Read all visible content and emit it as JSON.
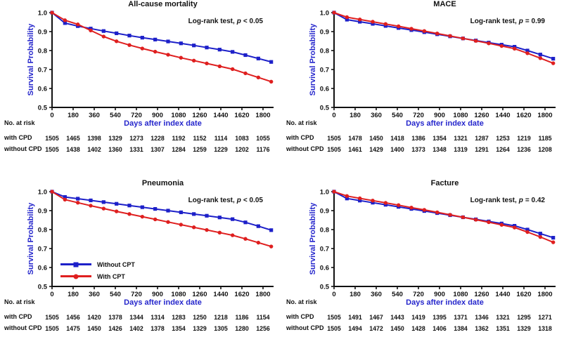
{
  "figure": {
    "background": "#ffffff",
    "colors": {
      "without_cpt": "#1d20c9",
      "with_cpt": "#df1f1f",
      "axis_label_blue": "#2526cc",
      "axis": "#111111",
      "text": "#111111"
    }
  },
  "chart_data": [
    {
      "type": "line",
      "title": "All-cause mortality",
      "logrank": {
        "prefix": "Log-rank test,",
        "p": "p",
        "value": "< 0.05"
      },
      "xlabel": "Days after index date",
      "ylabel": "Survival Probability",
      "ylim": [
        0.5,
        1.0
      ],
      "y_ticks": [
        "1.0",
        "0.9",
        "0.8",
        "0.7",
        "0.6",
        "0.5"
      ],
      "x_ticks": [
        0,
        180,
        360,
        540,
        720,
        900,
        1080,
        1260,
        1440,
        1620,
        1800
      ],
      "x_step_days": 110,
      "series": [
        {
          "name": "Without CPT",
          "color_key": "without_cpt",
          "marker": "square",
          "values": [
            1.0,
            0.945,
            0.929,
            0.916,
            0.903,
            0.891,
            0.879,
            0.868,
            0.858,
            0.848,
            0.838,
            0.827,
            0.816,
            0.805,
            0.793,
            0.776,
            0.758,
            0.74
          ]
        },
        {
          "name": "With CPT",
          "color_key": "with_cpt",
          "marker": "circle",
          "values": [
            1.0,
            0.96,
            0.938,
            0.906,
            0.874,
            0.849,
            0.829,
            0.811,
            0.794,
            0.778,
            0.762,
            0.747,
            0.732,
            0.717,
            0.702,
            0.68,
            0.658,
            0.636
          ]
        }
      ],
      "risk": {
        "header": "No. at risk",
        "rows": [
          {
            "label": "with CPD",
            "values": [
              1505,
              1465,
              1398,
              1329,
              1273,
              1228,
              1192,
              1152,
              1114,
              1083,
              1055
            ]
          },
          {
            "label": "without CPD",
            "values": [
              1505,
              1438,
              1402,
              1360,
              1331,
              1307,
              1284,
              1259,
              1229,
              1202,
              1176
            ]
          }
        ]
      }
    },
    {
      "type": "line",
      "title": "MACE",
      "logrank": {
        "prefix": "Log-rank test,",
        "p": "p",
        "value": "= 0.99"
      },
      "xlabel": "Days after index date",
      "ylabel": "Survival Probability",
      "ylim": [
        0.5,
        1.0
      ],
      "y_ticks": [
        "1.0",
        "0.9",
        "0.8",
        "0.7",
        "0.6",
        "0.5"
      ],
      "x_ticks": [
        0,
        180,
        360,
        540,
        720,
        900,
        1080,
        1260,
        1440,
        1620,
        1800
      ],
      "x_step_days": 110,
      "series": [
        {
          "name": "Without CPT",
          "color_key": "without_cpt",
          "marker": "square",
          "values": [
            1.0,
            0.963,
            0.952,
            0.941,
            0.93,
            0.919,
            0.908,
            0.897,
            0.886,
            0.875,
            0.864,
            0.853,
            0.842,
            0.831,
            0.82,
            0.8,
            0.779,
            0.757
          ]
        },
        {
          "name": "With CPT",
          "color_key": "with_cpt",
          "marker": "circle",
          "values": [
            1.0,
            0.976,
            0.964,
            0.952,
            0.94,
            0.928,
            0.915,
            0.903,
            0.89,
            0.877,
            0.864,
            0.851,
            0.838,
            0.824,
            0.81,
            0.786,
            0.76,
            0.733
          ]
        }
      ],
      "risk": {
        "header": "No. at risk",
        "rows": [
          {
            "label": "with CPD",
            "values": [
              1505,
              1478,
              1450,
              1418,
              1386,
              1354,
              1321,
              1287,
              1253,
              1219,
              1185
            ]
          },
          {
            "label": "without CPD",
            "values": [
              1505,
              1461,
              1429,
              1400,
              1373,
              1348,
              1319,
              1291,
              1264,
              1236,
              1208
            ]
          }
        ]
      }
    },
    {
      "type": "line",
      "title": "Pneumonia",
      "logrank": {
        "prefix": "Log-rank test,",
        "p": "p",
        "value": "< 0.05"
      },
      "xlabel": "Days after index date",
      "ylabel": "Survival Probability",
      "ylim": [
        0.5,
        1.0
      ],
      "y_ticks": [
        "1.0",
        "0.9",
        "0.8",
        "0.7",
        "0.6",
        "0.5"
      ],
      "x_ticks": [
        0,
        180,
        360,
        540,
        720,
        900,
        1080,
        1260,
        1440,
        1620,
        1800
      ],
      "x_step_days": 110,
      "legend": {
        "items": [
          {
            "label": "Without CPT",
            "color_key": "without_cpt",
            "marker": "square"
          },
          {
            "label": "With CPT",
            "color_key": "with_cpt",
            "marker": "circle"
          }
        ]
      },
      "series": [
        {
          "name": "Without CPT",
          "color_key": "without_cpt",
          "marker": "square",
          "values": [
            1.0,
            0.972,
            0.963,
            0.954,
            0.945,
            0.936,
            0.927,
            0.918,
            0.909,
            0.9,
            0.891,
            0.882,
            0.873,
            0.864,
            0.855,
            0.838,
            0.818,
            0.797
          ]
        },
        {
          "name": "With CPT",
          "color_key": "with_cpt",
          "marker": "circle",
          "values": [
            1.0,
            0.958,
            0.942,
            0.926,
            0.911,
            0.896,
            0.882,
            0.868,
            0.854,
            0.84,
            0.826,
            0.812,
            0.798,
            0.784,
            0.77,
            0.751,
            0.731,
            0.711
          ]
        }
      ],
      "risk": {
        "header": "No. at risk",
        "rows": [
          {
            "label": "with CPD",
            "values": [
              1505,
              1456,
              1420,
              1378,
              1344,
              1314,
              1283,
              1250,
              1218,
              1186,
              1154
            ]
          },
          {
            "label": "without CPD",
            "values": [
              1505,
              1475,
              1450,
              1426,
              1402,
              1378,
              1354,
              1329,
              1305,
              1280,
              1256
            ]
          }
        ]
      }
    },
    {
      "type": "line",
      "title": "Facture",
      "logrank": {
        "prefix": "Log-rank test,",
        "p": "p",
        "value": "= 0.42"
      },
      "xlabel": "Days after index date",
      "ylabel": "Survival Probability",
      "ylim": [
        0.5,
        1.0
      ],
      "y_ticks": [
        "1.0",
        "0.9",
        "0.8",
        "0.7",
        "0.6",
        "0.5"
      ],
      "x_ticks": [
        0,
        180,
        360,
        540,
        720,
        900,
        1080,
        1260,
        1440,
        1620,
        1800
      ],
      "x_step_days": 110,
      "series": [
        {
          "name": "Without CPT",
          "color_key": "without_cpt",
          "marker": "square",
          "values": [
            1.0,
            0.964,
            0.953,
            0.942,
            0.931,
            0.92,
            0.909,
            0.898,
            0.887,
            0.876,
            0.865,
            0.854,
            0.843,
            0.832,
            0.82,
            0.8,
            0.779,
            0.757
          ]
        },
        {
          "name": "With CPT",
          "color_key": "with_cpt",
          "marker": "circle",
          "values": [
            1.0,
            0.977,
            0.965,
            0.953,
            0.941,
            0.929,
            0.916,
            0.904,
            0.891,
            0.878,
            0.865,
            0.852,
            0.839,
            0.825,
            0.811,
            0.787,
            0.761,
            0.733
          ]
        }
      ],
      "risk": {
        "header": "No. at risk",
        "rows": [
          {
            "label": "with CPD",
            "values": [
              1505,
              1491,
              1467,
              1443,
              1419,
              1395,
              1371,
              1346,
              1321,
              1295,
              1271
            ]
          },
          {
            "label": "without CPD",
            "values": [
              1505,
              1494,
              1472,
              1450,
              1428,
              1406,
              1384,
              1362,
              1351,
              1329,
              1318
            ]
          }
        ]
      }
    }
  ]
}
